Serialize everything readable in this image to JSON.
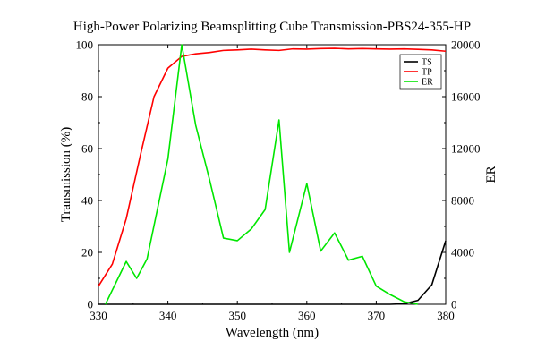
{
  "chart_data": {
    "type": "line",
    "title": "High-Power Polarizing Beamsplitting Cube Transmission-PBS24-355-HP",
    "xlabel": "Wavelength (nm)",
    "ylabel": "Transmission (%)",
    "y2label": "ER",
    "xlim": [
      330,
      380
    ],
    "ylim": [
      0,
      100
    ],
    "y2lim": [
      0,
      20000
    ],
    "x_ticks": [
      "330",
      "340",
      "350",
      "360",
      "370",
      "380"
    ],
    "y_ticks": [
      "0",
      "20",
      "40",
      "60",
      "80",
      "100"
    ],
    "y2_ticks": [
      "0",
      "4000",
      "8000",
      "12000",
      "16000",
      "20000"
    ],
    "legend_position": "top-right",
    "grid": false,
    "series": [
      {
        "name": "TS",
        "axis": "left",
        "color": "#000000",
        "x": [
          330,
          332,
          334,
          336,
          338,
          340,
          342,
          344,
          346,
          348,
          350,
          352,
          354,
          356,
          358,
          360,
          362,
          364,
          366,
          368,
          370,
          372,
          374,
          376,
          378,
          380
        ],
        "values": [
          0,
          0,
          0,
          0,
          0,
          0,
          0,
          0,
          0,
          0,
          0,
          0,
          0,
          0,
          0,
          0,
          0,
          0,
          0,
          0,
          0,
          0,
          0.2,
          1.5,
          7.5,
          24.5
        ]
      },
      {
        "name": "TP",
        "axis": "left",
        "color": "#ff0000",
        "x": [
          330,
          332,
          334,
          336,
          338,
          340,
          342,
          344,
          346,
          348,
          350,
          352,
          354,
          356,
          358,
          360,
          362,
          364,
          366,
          368,
          370,
          372,
          374,
          376,
          378,
          380
        ],
        "values": [
          7,
          15.5,
          33,
          57,
          80,
          91,
          95.5,
          96.5,
          97,
          97.8,
          98,
          98.3,
          98,
          97.8,
          98.4,
          98.3,
          98.5,
          98.6,
          98.4,
          98.5,
          98.4,
          98.3,
          98.4,
          98.2,
          98,
          97.5
        ]
      },
      {
        "name": "ER",
        "axis": "right",
        "color": "#00e600",
        "x": [
          331,
          334,
          335.5,
          337,
          340,
          342,
          344,
          346,
          348,
          350,
          352,
          354,
          356,
          357.5,
          360,
          362,
          364,
          366,
          368,
          370,
          372,
          374,
          376
        ],
        "values": [
          0,
          3300,
          2000,
          3500,
          11200,
          20000,
          13800,
          9600,
          5100,
          4900,
          5800,
          7300,
          14200,
          4000,
          9300,
          4100,
          5500,
          3400,
          3700,
          1400,
          750,
          200,
          0
        ]
      }
    ]
  }
}
